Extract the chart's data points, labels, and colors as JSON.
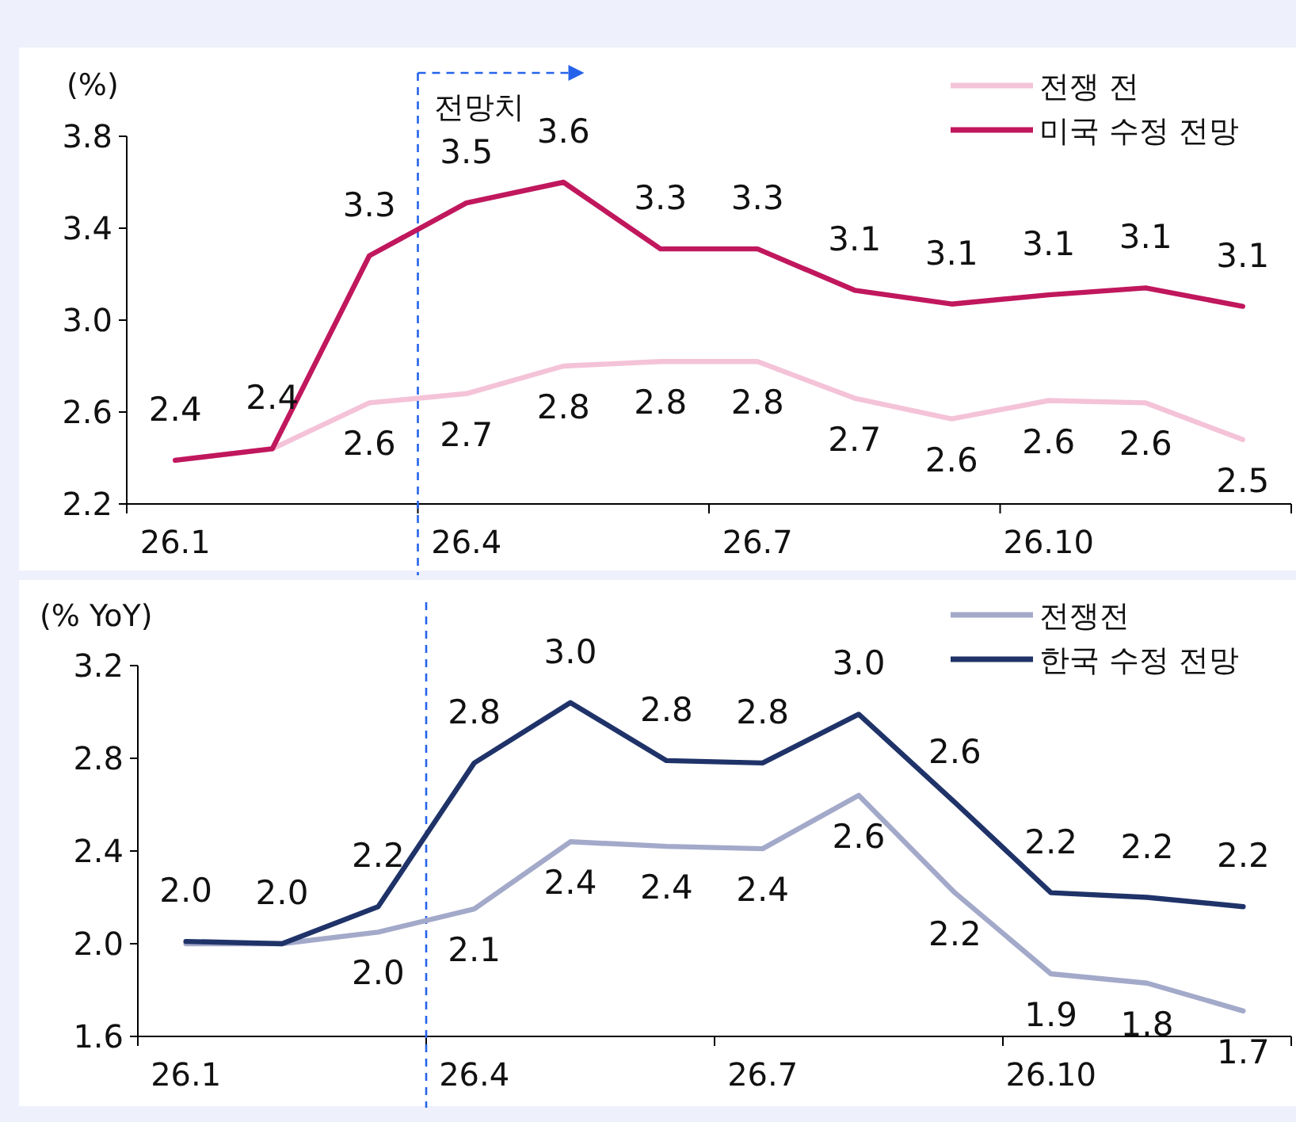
{
  "chart_data": [
    {
      "type": "line",
      "ylabel": "(%)",
      "categories": [
        "26.1",
        null,
        null,
        "26.4",
        null,
        null,
        "26.7",
        null,
        null,
        "26.10",
        null,
        null
      ],
      "ylim": [
        2.2,
        3.8
      ],
      "yticks": [
        2.2,
        2.6,
        {
          "value": 3.0,
          "label": "3.0"
        },
        3.4,
        3.8
      ],
      "grid": false,
      "legend": "top right",
      "ref_lines": [
        {
          "axis": "x",
          "value": "26.4",
          "color": "#2563eb",
          "line_style": "dashed"
        }
      ],
      "annotations": [
        "전망치"
      ],
      "series": [
        {
          "name": "전쟁 전",
          "color": "#f4c3d8",
          "values": [
            2.39,
            2.44,
            2.64,
            2.68,
            2.8,
            2.82,
            2.82,
            2.66,
            2.57,
            2.65,
            2.64,
            2.48
          ],
          "value_labels": [
            null,
            null,
            "2.6",
            "2.7",
            "2.8",
            "2.8",
            "2.8",
            "2.7",
            "2.6",
            "2.6",
            "2.6",
            "2.5"
          ]
        },
        {
          "name": "미국 수정 전망",
          "color": "#c0175d",
          "values": [
            2.39,
            2.44,
            3.28,
            3.51,
            3.6,
            3.31,
            3.31,
            3.13,
            3.07,
            3.11,
            3.14,
            3.06
          ],
          "value_labels": [
            "2.4",
            "2.4",
            "3.3",
            "3.5",
            "3.6",
            "3.3",
            "3.3",
            "3.1",
            "3.1",
            "3.1",
            "3.1",
            "3.1"
          ]
        }
      ]
    },
    {
      "type": "line",
      "ylabel": "(% YoY)",
      "categories": [
        "26.1",
        null,
        null,
        "26.4",
        null,
        null,
        "26.7",
        null,
        null,
        "26.10",
        null,
        null
      ],
      "ylim": [
        1.6,
        3.2
      ],
      "yticks": [
        1.6,
        {
          "value": 2.0,
          "label": "2.0"
        },
        2.4,
        2.8,
        3.2
      ],
      "grid": false,
      "legend": "top right",
      "ref_lines": [
        {
          "axis": "x",
          "value": "26.4",
          "color": "#2563eb",
          "line_style": "dashed"
        }
      ],
      "series": [
        {
          "name": "전쟁전",
          "color": "#a3a9c9",
          "values": [
            2.0,
            2.0,
            2.05,
            2.15,
            2.44,
            2.42,
            2.41,
            2.64,
            2.22,
            1.87,
            1.83,
            1.71
          ],
          "value_labels": [
            null,
            null,
            "2.0",
            "2.1",
            "2.4",
            "2.4",
            "2.4",
            "2.6",
            "2.2",
            "1.9",
            "1.8",
            "1.7"
          ]
        },
        {
          "name": "한국 수정 전망",
          "color": "#1f3369",
          "values": [
            2.01,
            2.0,
            2.16,
            2.78,
            3.04,
            2.79,
            2.78,
            2.99,
            2.61,
            2.22,
            2.2,
            2.16
          ],
          "value_labels": [
            "2.0",
            "2.0",
            "2.2",
            "2.8",
            "3.0",
            "2.8",
            "2.8",
            "3.0",
            "2.6",
            "2.2",
            "2.2",
            "2.2"
          ]
        }
      ]
    }
  ]
}
